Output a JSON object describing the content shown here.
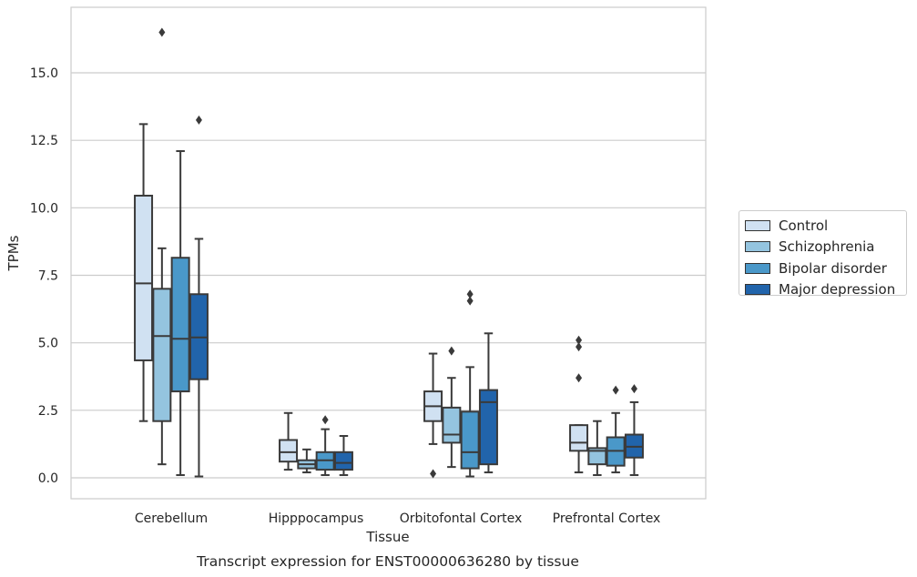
{
  "chart_data": {
    "type": "boxplot",
    "title": "Transcript expression for ENST00000636280 by tissue",
    "xlabel": "Tissue",
    "ylabel": "TPMs",
    "ylim": [
      -0.8,
      17.8
    ],
    "yticks": [
      "0.0",
      "2.5",
      "5.0",
      "7.5",
      "10.0",
      "12.5",
      "15.0"
    ],
    "ytick_values": [
      0,
      2.5,
      5,
      7.5,
      10,
      12.5,
      15
    ],
    "grid": true,
    "legend_position": "right",
    "categories": [
      "Cerebellum",
      "Hipppocampus",
      "Orbitofontal Cortex",
      "Prefrontal Cortex"
    ],
    "series": [
      {
        "name": "Control",
        "color": "#d0e1f2",
        "boxes": [
          {
            "whislo": 2.1,
            "q1": 4.35,
            "med": 7.2,
            "q3": 10.45,
            "whishi": 13.1,
            "fliers": []
          },
          {
            "whislo": 0.3,
            "q1": 0.6,
            "med": 0.95,
            "q3": 1.4,
            "whishi": 2.4,
            "fliers": []
          },
          {
            "whislo": 1.25,
            "q1": 2.1,
            "med": 2.65,
            "q3": 3.2,
            "whishi": 4.6,
            "fliers": [
              0.15
            ]
          },
          {
            "whislo": 0.2,
            "q1": 1.0,
            "med": 1.3,
            "q3": 1.95,
            "whishi": 1.95,
            "fliers": [
              3.7,
              4.85,
              5.1
            ]
          }
        ]
      },
      {
        "name": "Schizophrenia",
        "color": "#94c4df",
        "boxes": [
          {
            "whislo": 0.5,
            "q1": 2.1,
            "med": 5.25,
            "q3": 7.0,
            "whishi": 8.5,
            "fliers": [
              16.5
            ]
          },
          {
            "whislo": 0.2,
            "q1": 0.35,
            "med": 0.5,
            "q3": 0.65,
            "whishi": 1.05,
            "fliers": []
          },
          {
            "whislo": 0.4,
            "q1": 1.3,
            "med": 1.6,
            "q3": 2.6,
            "whishi": 3.7,
            "fliers": [
              4.7
            ]
          },
          {
            "whislo": 0.1,
            "q1": 0.5,
            "med": 1.0,
            "q3": 1.1,
            "whishi": 2.1,
            "fliers": []
          }
        ]
      },
      {
        "name": "Bipolar disorder",
        "color": "#4a98c9",
        "boxes": [
          {
            "whislo": 0.1,
            "q1": 3.2,
            "med": 5.15,
            "q3": 8.15,
            "whishi": 12.1,
            "fliers": []
          },
          {
            "whislo": 0.1,
            "q1": 0.3,
            "med": 0.65,
            "q3": 0.95,
            "whishi": 1.8,
            "fliers": [
              2.15
            ]
          },
          {
            "whislo": 0.05,
            "q1": 0.35,
            "med": 0.95,
            "q3": 2.45,
            "whishi": 4.1,
            "fliers": [
              6.55,
              6.8
            ]
          },
          {
            "whislo": 0.2,
            "q1": 0.45,
            "med": 1.0,
            "q3": 1.5,
            "whishi": 2.4,
            "fliers": [
              3.25
            ]
          }
        ]
      },
      {
        "name": "Major depression",
        "color": "#2164ab",
        "boxes": [
          {
            "whislo": 0.05,
            "q1": 3.65,
            "med": 5.2,
            "q3": 6.8,
            "whishi": 8.85,
            "fliers": [
              13.25
            ]
          },
          {
            "whislo": 0.1,
            "q1": 0.3,
            "med": 0.55,
            "q3": 0.95,
            "whishi": 1.55,
            "fliers": []
          },
          {
            "whislo": 0.2,
            "q1": 0.5,
            "med": 2.8,
            "q3": 3.25,
            "whishi": 5.35,
            "fliers": []
          },
          {
            "whislo": 0.1,
            "q1": 0.75,
            "med": 1.15,
            "q3": 1.6,
            "whishi": 2.8,
            "fliers": [
              3.3
            ]
          }
        ]
      }
    ]
  }
}
